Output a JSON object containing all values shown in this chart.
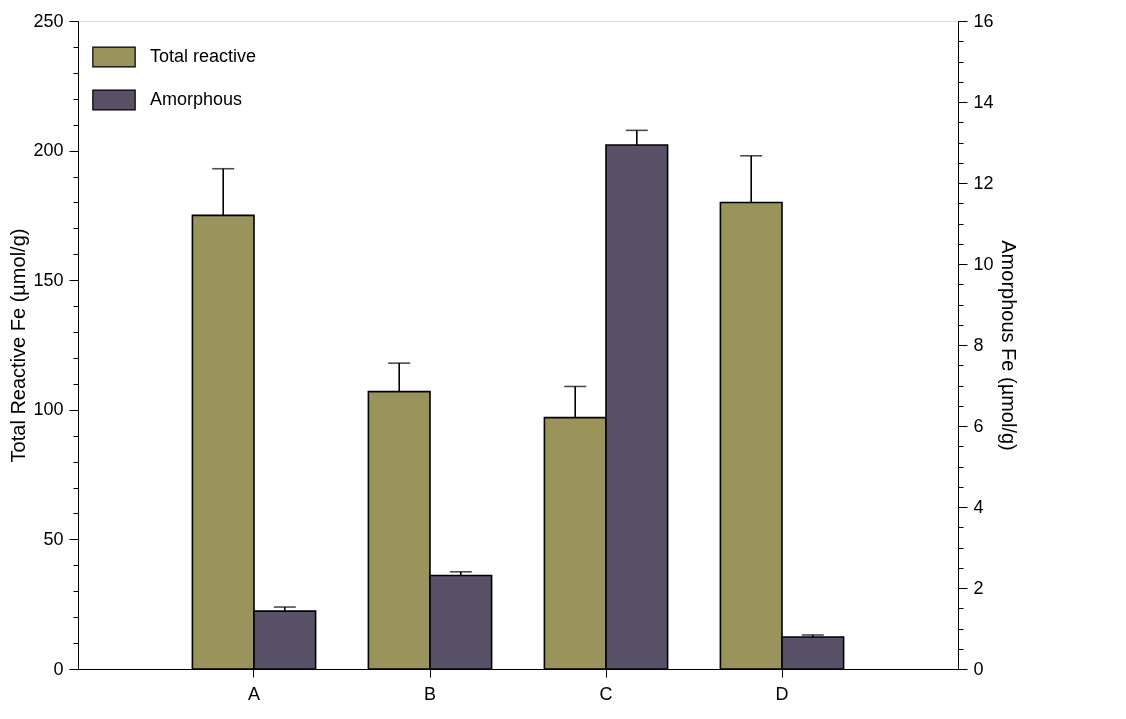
{
  "chart_data": {
    "type": "bar",
    "categories": [
      "A",
      "B",
      "C",
      "D"
    ],
    "series": [
      {
        "name": "Total reactive",
        "color": "#9a945c",
        "axis": "y",
        "values": [
          175,
          107,
          97,
          180
        ],
        "errors": [
          [
            175,
            193
          ],
          [
            107,
            118
          ],
          [
            97,
            109
          ],
          [
            180,
            198
          ]
        ]
      },
      {
        "name": "Amorphous",
        "color": "#5a5068",
        "axis": "y2",
        "values": [
          1.43,
          2.31,
          12.94,
          0.79
        ],
        "errors": [
          [
            1.43,
            1.53
          ],
          [
            2.31,
            2.4
          ],
          [
            12.94,
            13.3
          ],
          [
            0.79,
            0.84
          ]
        ]
      }
    ],
    "ylabel": "Total Reactive Fe (µmol/g)",
    "y2label": "Amorphous Fe (µmol/g)",
    "ylim": [
      0,
      250
    ],
    "yticks": [
      0,
      {
        "value": 10,
        "label": null
      },
      {
        "value": 20,
        "label": null
      },
      {
        "value": 30,
        "label": null
      },
      {
        "value": 40,
        "label": null
      },
      50,
      {
        "value": 60,
        "label": null
      },
      {
        "value": 70,
        "label": null
      },
      {
        "value": 80,
        "label": null
      },
      {
        "value": 90,
        "label": null
      },
      100,
      {
        "value": 110,
        "label": null
      },
      {
        "value": 120,
        "label": null
      },
      {
        "value": 130,
        "label": null
      },
      {
        "value": 140,
        "label": null
      },
      150,
      {
        "value": 160,
        "label": null
      },
      {
        "value": 170,
        "label": null
      },
      {
        "value": 180,
        "label": null
      },
      {
        "value": 190,
        "label": null
      },
      200,
      {
        "value": 210,
        "label": null
      },
      {
        "value": 220,
        "label": null
      },
      {
        "value": 230,
        "label": null
      },
      {
        "value": 240,
        "label": null
      },
      250
    ],
    "y2lim": [
      0,
      16
    ],
    "y2ticks": [
      0,
      {
        "value": 0.5,
        "label": null
      },
      {
        "value": 1,
        "label": null
      },
      {
        "value": 1.5,
        "label": null
      },
      2,
      {
        "value": 2.5,
        "label": null
      },
      {
        "value": 3,
        "label": null
      },
      {
        "value": 3.5,
        "label": null
      },
      4,
      {
        "value": 4.5,
        "label": null
      },
      {
        "value": 5,
        "label": null
      },
      {
        "value": 5.5,
        "label": null
      },
      6,
      {
        "value": 6.5,
        "label": null
      },
      {
        "value": 7,
        "label": null
      },
      {
        "value": 7.5,
        "label": null
      },
      8,
      {
        "value": 8.5,
        "label": null
      },
      {
        "value": 9,
        "label": null
      },
      {
        "value": 9.5,
        "label": null
      },
      10,
      {
        "value": 10.5,
        "label": null
      },
      {
        "value": 11,
        "label": null
      },
      {
        "value": 11.5,
        "label": null
      },
      12,
      {
        "value": 12.5,
        "label": null
      },
      {
        "value": 13,
        "label": null
      },
      {
        "value": 13.5,
        "label": null
      },
      14,
      {
        "value": 14.5,
        "label": null
      },
      {
        "value": 15,
        "label": null
      },
      {
        "value": 15.5,
        "label": null
      },
      16
    ],
    "grid": false,
    "legend": "top left"
  }
}
